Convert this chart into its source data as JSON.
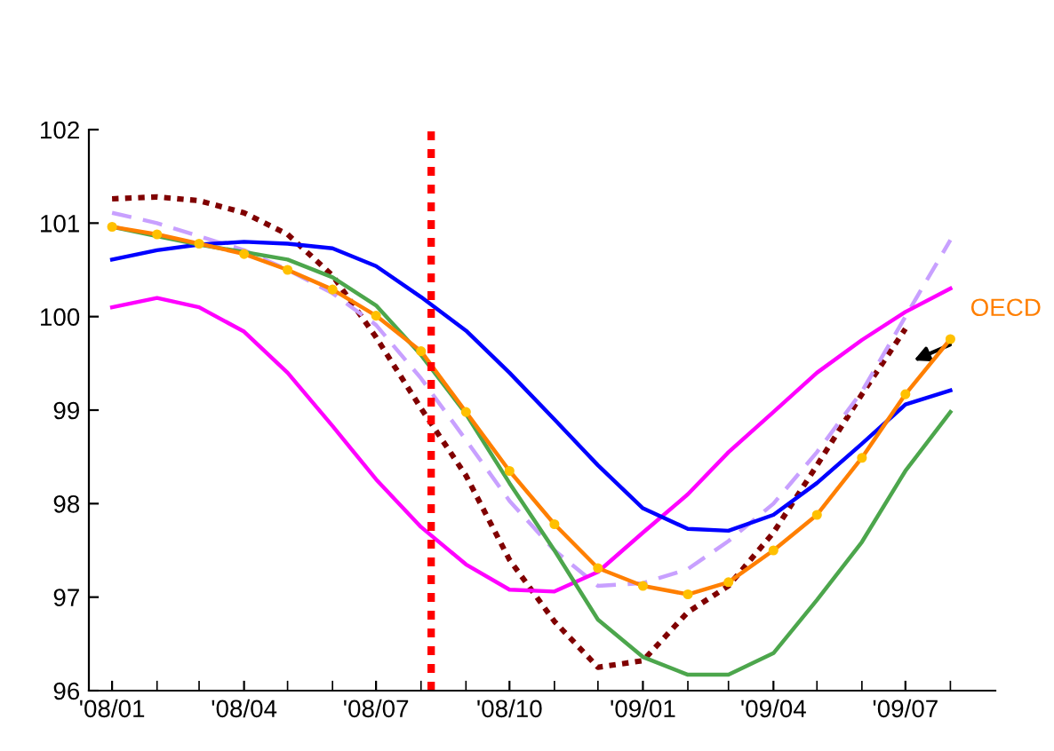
{
  "chart_data": {
    "type": "line",
    "x": [
      "2008-01",
      "2008-02",
      "2008-03",
      "2008-04",
      "2008-05",
      "2008-06",
      "2008-07",
      "2008-08",
      "2008-09",
      "2008-10",
      "2008-11",
      "2008-12",
      "2009-01",
      "2009-02",
      "2009-03",
      "2009-04",
      "2009-05",
      "2009-06",
      "2009-07",
      "2009-08"
    ],
    "xlim": [
      "2007-12-16",
      "2009-09-01"
    ],
    "xticks": [
      {
        "value": "2008-01",
        "label": "'08/01"
      },
      {
        "value": "2008-04",
        "label": "'08/04"
      },
      {
        "value": "2008-07",
        "label": "'08/07"
      },
      {
        "value": "2008-10",
        "label": "'08/10"
      },
      {
        "value": "2009-01",
        "label": "'09/01"
      },
      {
        "value": "2009-04",
        "label": "'09/04"
      },
      {
        "value": "2009-07",
        "label": "'09/07"
      }
    ],
    "ylim": [
      96,
      102
    ],
    "yticks": [
      96,
      97,
      98,
      99,
      100,
      101,
      102
    ],
    "grid": false,
    "legend": false,
    "series": [
      {
        "color": "#800000",
        "line_style": "dotted",
        "values": [
          101.26,
          101.28,
          101.24,
          101.11,
          100.88,
          100.44,
          99.78,
          99.02,
          98.3,
          97.4,
          96.74,
          96.25,
          96.32,
          96.84,
          97.12,
          97.69,
          98.41,
          99.17,
          99.87,
          null
        ]
      },
      {
        "color": "#c8a0ff",
        "line_style": "dashed",
        "values": [
          101.11,
          101.0,
          100.86,
          100.71,
          100.5,
          100.25,
          99.91,
          99.34,
          98.68,
          98.03,
          97.5,
          97.12,
          97.15,
          97.3,
          97.6,
          98.0,
          98.55,
          99.2,
          100.0,
          100.82
        ]
      },
      {
        "color": "#ff00ff",
        "line_style": "solid",
        "values": [
          100.1,
          100.2,
          100.1,
          99.84,
          99.4,
          98.83,
          98.26,
          97.75,
          97.35,
          97.08,
          97.06,
          97.27,
          97.69,
          98.1,
          98.55,
          98.98,
          99.4,
          99.75,
          100.05,
          100.3
        ]
      },
      {
        "color": "#0000ff",
        "line_style": "solid",
        "values": [
          100.61,
          100.71,
          100.77,
          100.8,
          100.78,
          100.73,
          100.54,
          100.21,
          99.85,
          99.4,
          98.9,
          98.41,
          97.95,
          97.73,
          97.71,
          97.88,
          98.22,
          98.64,
          99.06,
          99.21
        ]
      },
      {
        "color": "#4ca64c",
        "line_style": "solid",
        "values": [
          100.96,
          100.86,
          100.77,
          100.69,
          100.61,
          100.42,
          100.12,
          99.59,
          98.96,
          98.22,
          97.5,
          96.76,
          96.36,
          96.17,
          96.17,
          96.4,
          96.97,
          97.59,
          98.35,
          98.98
        ]
      },
      {
        "name": "OECD",
        "color": "#ff7f00",
        "line_style": "solid",
        "marker": "circle",
        "values": [
          100.96,
          100.88,
          100.78,
          100.67,
          100.5,
          100.29,
          100.01,
          99.63,
          98.98,
          98.35,
          97.78,
          97.31,
          97.12,
          97.03,
          97.16,
          97.5,
          97.88,
          98.49,
          99.17,
          99.76
        ]
      }
    ],
    "ref_lines": [
      {
        "axis": "x",
        "value": "2008-08-08",
        "color": "#ff0000",
        "line_style": "dotted"
      }
    ]
  }
}
